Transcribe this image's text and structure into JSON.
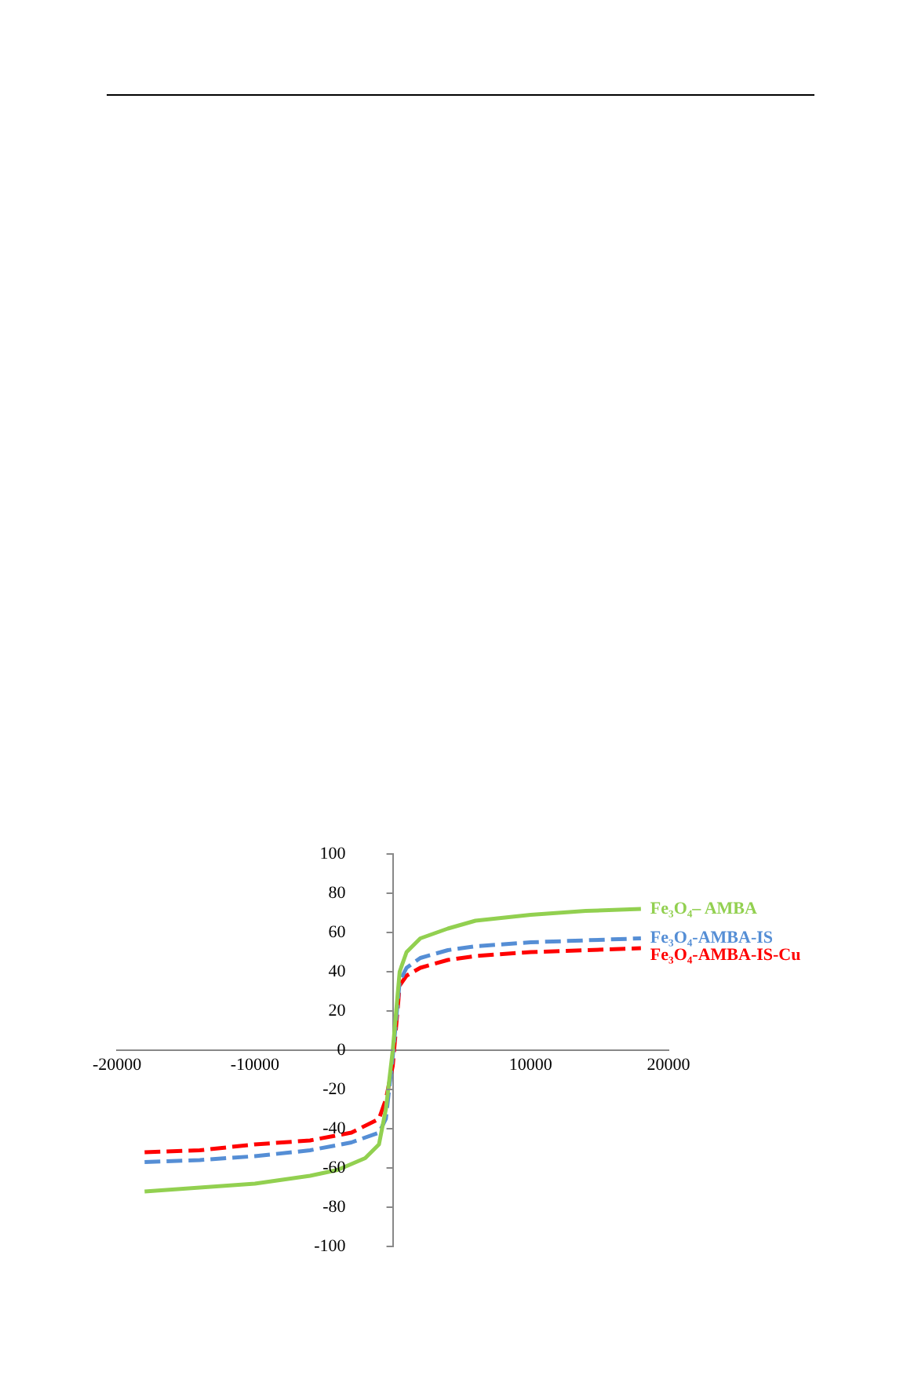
{
  "chart_data": {
    "type": "line",
    "xlim": [
      -20000,
      20000
    ],
    "xticks": [
      -20000,
      -10000,
      10000,
      20000
    ],
    "ylim": [
      -100,
      100
    ],
    "yticks": [
      -100,
      -80,
      -60,
      -40,
      -20,
      0,
      20,
      40,
      60,
      80,
      100
    ],
    "grid": false,
    "legend": false,
    "marker": "none",
    "series": [
      {
        "name": "Fe₃O₄– AMBA",
        "color": "#92d050",
        "line_style": "solid",
        "x": [
          -18000,
          -14000,
          -10000,
          -6000,
          -4000,
          -2000,
          -1000,
          -500,
          0,
          500,
          1000,
          2000,
          4000,
          6000,
          10000,
          14000,
          18000
        ],
        "values": [
          -72,
          -70,
          -68,
          -64,
          -61,
          -55,
          -48,
          -30,
          0,
          40,
          50,
          57,
          62,
          66,
          69,
          71,
          72
        ]
      },
      {
        "name": "Fe₃O₄-AMBA-IS",
        "color": "#558ed5",
        "line_style": "dashed",
        "x": [
          -18000,
          -14000,
          -10000,
          -6000,
          -3000,
          -1000,
          -500,
          0,
          500,
          1000,
          2000,
          4000,
          6000,
          10000,
          14000,
          18000
        ],
        "values": [
          -57,
          -56,
          -54,
          -51,
          -47,
          -42,
          -35,
          -3,
          35,
          42,
          47,
          51,
          53,
          55,
          56,
          57
        ]
      },
      {
        "name": "Fe₃O₄-AMBA-IS-Cu",
        "color": "#ff0000",
        "line_style": "dashed",
        "x": [
          -18000,
          -14000,
          -10000,
          -6000,
          -3000,
          -1000,
          -500,
          0,
          500,
          1000,
          2000,
          4000,
          6000,
          10000,
          14000,
          18000
        ],
        "values": [
          -52,
          -51,
          -48,
          -46,
          -42,
          -35,
          -25,
          -8,
          33,
          38,
          42,
          46,
          48,
          50,
          51,
          52
        ]
      }
    ]
  }
}
